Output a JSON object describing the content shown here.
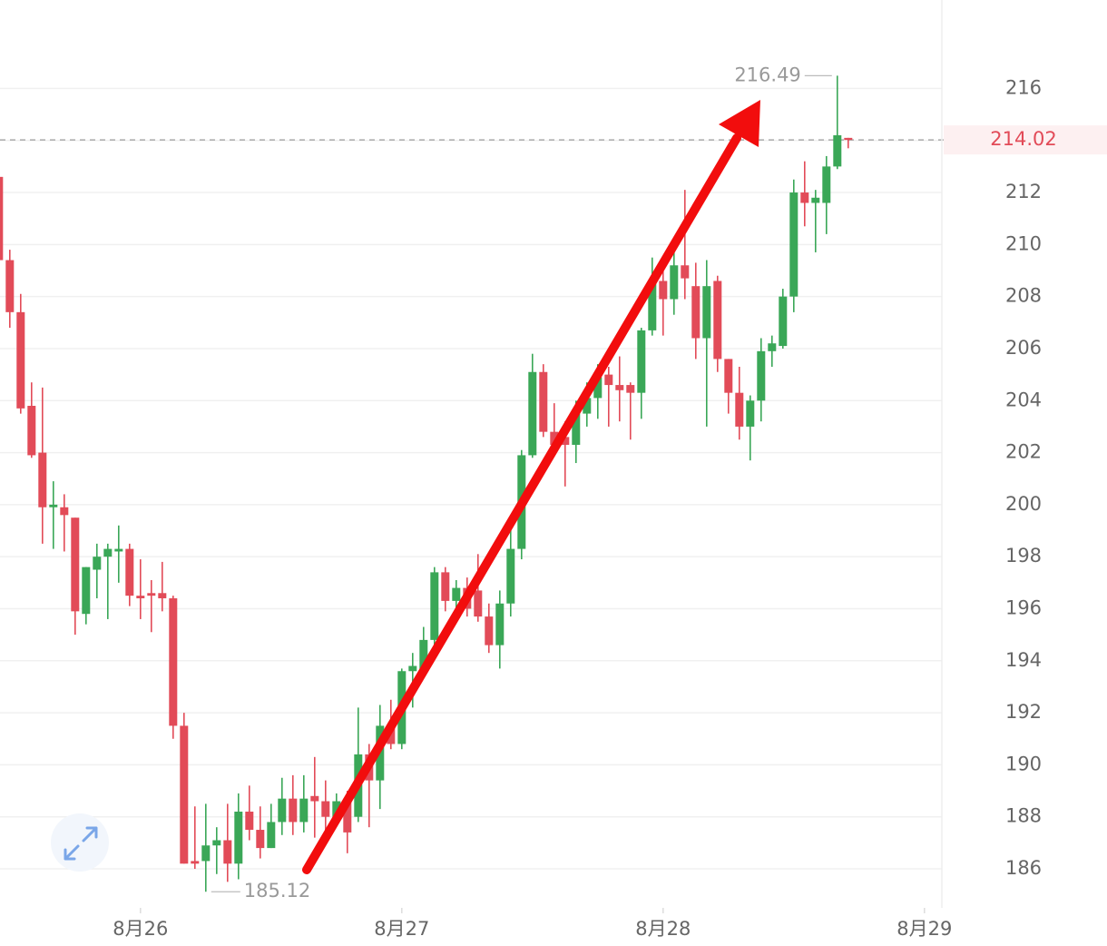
{
  "chart_data": {
    "type": "candlestick",
    "x": [
      -13,
      -12,
      -11,
      -10,
      -9,
      -8,
      -7,
      -6,
      -5,
      -4,
      -3,
      -2,
      -1,
      0,
      1,
      2,
      3,
      4,
      5,
      6,
      7,
      8,
      9,
      10,
      11,
      12,
      13,
      14,
      15,
      16,
      17,
      18,
      19,
      20,
      21,
      22,
      23,
      24,
      25,
      26,
      27,
      28,
      29,
      30,
      31,
      32,
      33,
      34,
      35,
      36,
      37,
      38,
      39,
      40,
      41,
      42,
      43,
      44,
      45,
      46,
      47,
      48,
      49,
      50,
      51,
      52,
      53,
      54,
      55,
      56,
      57,
      58,
      59,
      60,
      61,
      62,
      63,
      64,
      65
    ],
    "open": [
      212.6,
      209.4,
      207.4,
      203.8,
      202,
      199.9,
      199.9,
      199.5,
      195.8,
      197.5,
      198,
      198.2,
      198.3,
      196.5,
      196.6,
      196.6,
      196.4,
      191.5,
      186.3,
      186.3,
      186.9,
      187.1,
      186.2,
      188.2,
      187.5,
      186.8,
      187.8,
      188.7,
      187.8,
      188.8,
      188.6,
      188,
      188.7,
      188,
      190.4,
      189.4,
      191.5,
      190.8,
      193.6,
      193.6,
      194.8,
      197.4,
      196.3,
      196.8,
      196.7,
      195.7,
      194.6,
      196.2,
      198.3,
      201.9,
      205.1,
      202.8,
      202.6,
      202.3,
      203.5,
      204.1,
      205,
      204.6,
      204.6,
      204.3,
      206.7,
      208.6,
      207.9,
      209.2,
      208.4,
      206.4,
      208.6,
      205.6,
      204.3,
      203,
      204,
      205.9,
      206.1,
      208,
      212,
      211.6,
      211.6,
      213,
      214.1
    ],
    "high": [
      212.7,
      209.8,
      208.1,
      204.7,
      204.5,
      200.9,
      200.4,
      199.5,
      197.6,
      198.5,
      198.5,
      199.2,
      198.5,
      197.9,
      197.1,
      197.8,
      196.5,
      192,
      188.4,
      188.5,
      187.6,
      188.5,
      188.9,
      189.2,
      188.4,
      188.5,
      189.5,
      189.6,
      189.6,
      190.3,
      189.4,
      188.9,
      189,
      192.2,
      190.8,
      192.3,
      192.5,
      193.7,
      194.3,
      195.3,
      197.6,
      197.6,
      197.1,
      197.2,
      198.1,
      196.2,
      196.7,
      199.2,
      202.1,
      205.8,
      205.4,
      203.9,
      203.2,
      204,
      204.7,
      205.4,
      205.3,
      205.7,
      204.7,
      206.8,
      209.5,
      209.5,
      209.8,
      212.1,
      209.3,
      209.4,
      208.8,
      205.6,
      205.3,
      204.2,
      206.4,
      206.5,
      208.3,
      212.5,
      213.2,
      212.1,
      213.4,
      216.49,
      214.1
    ],
    "low": [
      209,
      206.8,
      203.5,
      201.8,
      198.5,
      198.3,
      198.2,
      195,
      195.4,
      196.4,
      195.6,
      197,
      196.1,
      195.6,
      195.1,
      195.9,
      191,
      186.2,
      186,
      185.12,
      185.8,
      185.5,
      185.6,
      187.1,
      186.4,
      186.8,
      187.3,
      187.3,
      187.4,
      187.2,
      187.3,
      187.8,
      186.6,
      187.8,
      187.6,
      188.3,
      190.6,
      190.6,
      192.2,
      193.4,
      194.6,
      195.9,
      195.7,
      195.7,
      195.5,
      194.3,
      193.7,
      195.7,
      197.9,
      201.8,
      202.6,
      202.1,
      200.7,
      201.6,
      203,
      203.3,
      203,
      203.2,
      202.5,
      203.3,
      206.5,
      206.5,
      207.3,
      207.9,
      205.6,
      203,
      205.1,
      203.5,
      202.5,
      201.7,
      203.2,
      205.3,
      206,
      207.4,
      210.7,
      209.7,
      210.4,
      212.9,
      213.7
    ],
    "close": [
      209.4,
      207.4,
      203.7,
      201.9,
      199.9,
      200,
      199.6,
      195.9,
      197.6,
      198,
      198.3,
      198.3,
      196.5,
      196.4,
      196.5,
      196.4,
      191.5,
      186.2,
      186.2,
      186.9,
      187.1,
      186.2,
      188.2,
      187.5,
      186.8,
      187.8,
      188.7,
      187.8,
      188.7,
      188.6,
      188,
      188.6,
      187.4,
      190.4,
      189.4,
      191.5,
      190.8,
      193.6,
      193.8,
      194.8,
      197.4,
      196.3,
      196.8,
      196,
      195.7,
      194.6,
      196.2,
      198.3,
      201.9,
      205.1,
      202.8,
      202.3,
      202.3,
      203.5,
      204.1,
      204.9,
      204.6,
      204.4,
      204.3,
      206.7,
      208.6,
      207.9,
      209.2,
      208.7,
      206.4,
      208.4,
      205.6,
      204.3,
      203,
      204,
      205.9,
      206.2,
      208,
      212,
      211.6,
      211.8,
      213,
      214.2,
      214.02
    ],
    "up_color": "#3aa757",
    "down_color": "#e24b58",
    "xlim": [
      -12.9,
      73.6
    ],
    "xticks": [
      {
        "value": 0,
        "label": "8月26"
      },
      {
        "value": 24,
        "label": "8月27"
      },
      {
        "value": 48,
        "label": "8月28"
      },
      {
        "value": 72,
        "label": "8月29"
      }
    ],
    "ylim": [
      184.5,
      219.4
    ],
    "yticks": [
      186,
      188,
      190,
      192,
      194,
      196,
      198,
      200,
      202,
      204,
      206,
      208,
      210,
      212,
      214,
      216
    ],
    "grid": true
  }
}
